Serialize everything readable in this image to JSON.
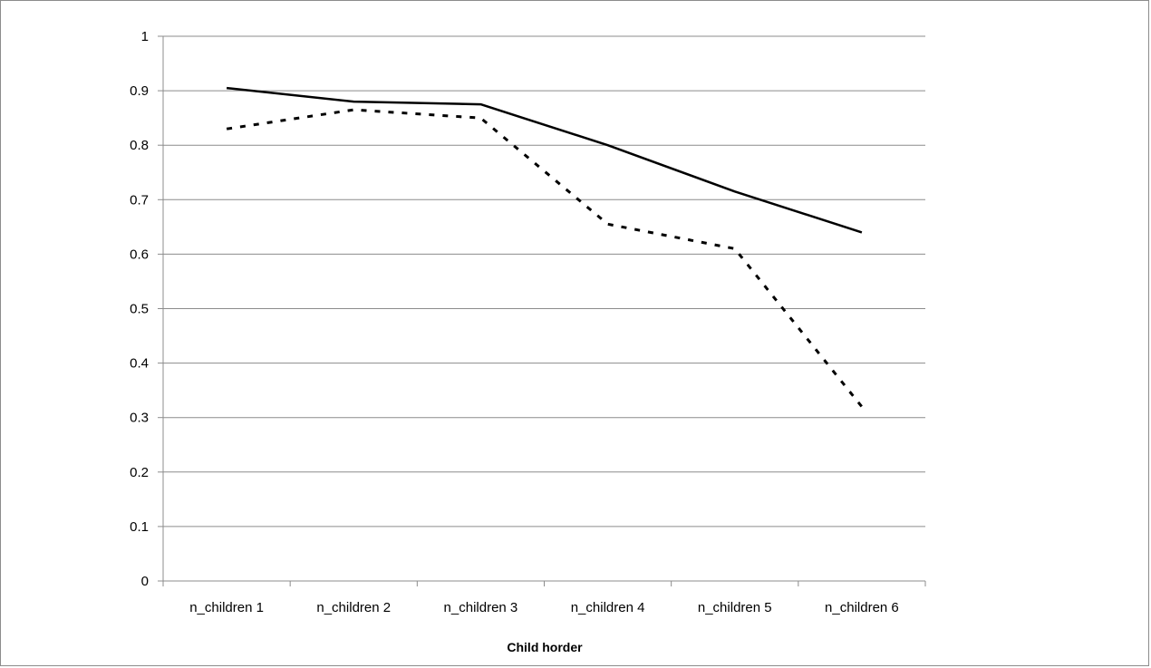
{
  "chart_data": {
    "type": "line",
    "title": "",
    "xlabel": "Child horder",
    "ylabel": "",
    "categories": [
      "n_children 1",
      "n_children 2",
      "n_children 3",
      "n_children 4",
      "n_children 5",
      "n_children 6"
    ],
    "ylim": [
      0,
      1
    ],
    "yticks": [
      "0",
      "0.1",
      "0.2",
      "0.3",
      "0.4",
      "0.5",
      "0.6",
      "0.7",
      "0.8",
      "0.9",
      "1"
    ],
    "grid": true,
    "legend": "none",
    "series": [
      {
        "style": "solid",
        "color": "#000000",
        "values": [
          0.905,
          0.88,
          0.875,
          0.8,
          0.715,
          0.64
        ]
      },
      {
        "style": "dotted",
        "color": "#000000",
        "values": [
          0.83,
          0.865,
          0.85,
          0.655,
          0.61,
          0.32
        ]
      }
    ]
  }
}
